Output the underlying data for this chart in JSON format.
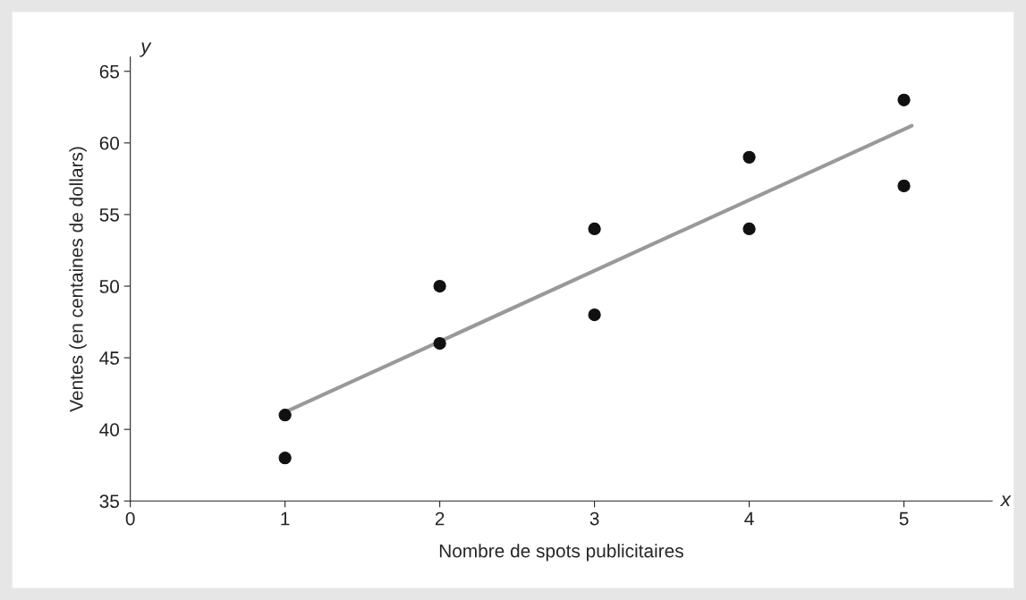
{
  "chart_data": {
    "type": "scatter",
    "xlabel": "Nombre de spots publicitaires",
    "ylabel": "Ventes (en centaines de dollars)",
    "annotations": [
      "y",
      "x"
    ],
    "series": [
      {
        "color": "#111111",
        "x": [
          1,
          1,
          2,
          2,
          3,
          3,
          4,
          4,
          5,
          5
        ],
        "values": [
          41,
          38,
          50,
          46,
          54,
          48,
          59,
          54,
          63,
          57
        ],
        "marker": "circle"
      },
      {
        "type": "line",
        "color": "#999999",
        "x": [
          1,
          5.05
        ],
        "values": [
          41.2,
          61.2
        ],
        "marker": "none",
        "line_style": "solid"
      }
    ],
    "xlim": [
      0,
      5.57
    ],
    "xticks": [
      0,
      1,
      2,
      3,
      4,
      5
    ],
    "ylim": [
      35,
      66
    ],
    "yticks": [
      35,
      40,
      45,
      50,
      55,
      60,
      65
    ],
    "grid": false,
    "legend": false
  }
}
